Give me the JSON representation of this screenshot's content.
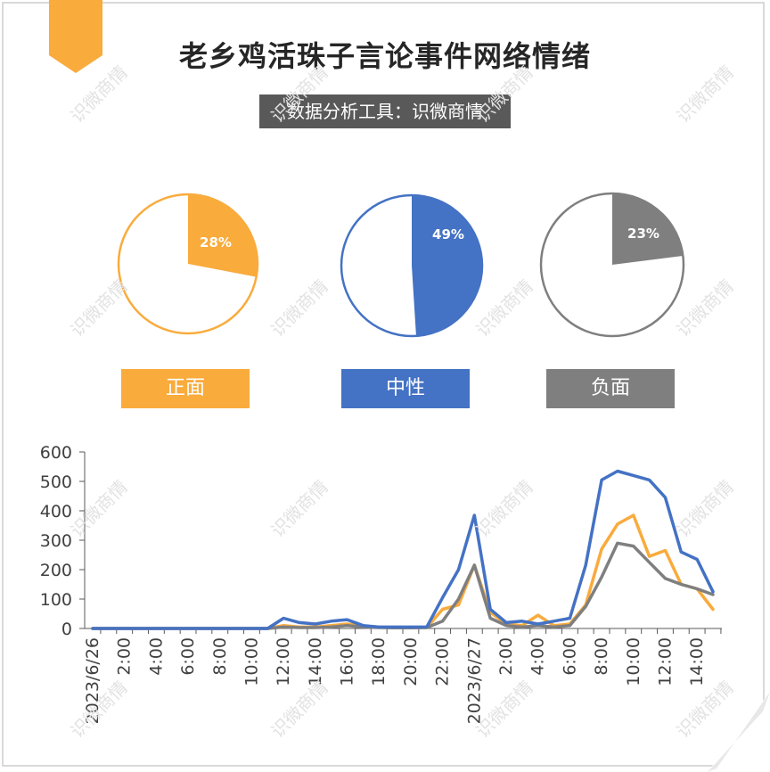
{
  "title": "老乡鸡活珠子言论事件网络情绪",
  "subtitle": "数据分析工具：识微商情",
  "watermark_text": "识微商情",
  "colors": {
    "positive": "#F9AB3C",
    "neutral": "#4472C4",
    "negative": "#7F7F7F",
    "subtitle_bg": "#595959"
  },
  "sentiment": [
    {
      "key": "positive",
      "label": "正面",
      "percent_label": "28%",
      "fraction": 0.28
    },
    {
      "key": "neutral",
      "label": "中性",
      "percent_label": "49%",
      "fraction": 0.49
    },
    {
      "key": "negative",
      "label": "负面",
      "percent_label": "23%",
      "fraction": 0.23
    }
  ],
  "chart_data": {
    "type": "line",
    "ylim": [
      0,
      600
    ],
    "yticks": [
      0,
      100,
      200,
      300,
      400,
      500,
      600
    ],
    "x": [
      "2023/6/26 0:00",
      "1:00",
      "2:00",
      "3:00",
      "4:00",
      "5:00",
      "6:00",
      "7:00",
      "8:00",
      "9:00",
      "10:00",
      "11:00",
      "12:00",
      "13:00",
      "14:00",
      "15:00",
      "16:00",
      "17:00",
      "18:00",
      "19:00",
      "20:00",
      "21:00",
      "22:00",
      "23:00",
      "2023/6/27 0:00",
      "1:00",
      "2:00",
      "3:00",
      "4:00",
      "5:00",
      "6:00",
      "7:00",
      "8:00",
      "9:00",
      "10:00",
      "11:00",
      "12:00",
      "13:00",
      "14:00",
      "15:00"
    ],
    "tick_labels": [
      {
        "i": 0,
        "label": "2023/6/26"
      },
      {
        "i": 2,
        "label": "2:00"
      },
      {
        "i": 4,
        "label": "4:00"
      },
      {
        "i": 6,
        "label": "6:00"
      },
      {
        "i": 8,
        "label": "8:00"
      },
      {
        "i": 10,
        "label": "10:00"
      },
      {
        "i": 12,
        "label": "12:00"
      },
      {
        "i": 14,
        "label": "14:00"
      },
      {
        "i": 16,
        "label": "16:00"
      },
      {
        "i": 18,
        "label": "18:00"
      },
      {
        "i": 20,
        "label": "20:00"
      },
      {
        "i": 22,
        "label": "22:00"
      },
      {
        "i": 24,
        "label": "2023/6/27"
      },
      {
        "i": 26,
        "label": "2:00"
      },
      {
        "i": 28,
        "label": "4:00"
      },
      {
        "i": 30,
        "label": "6:00"
      },
      {
        "i": 32,
        "label": "8:00"
      },
      {
        "i": 34,
        "label": "10:00"
      },
      {
        "i": 36,
        "label": "12:00"
      },
      {
        "i": 38,
        "label": "14:00"
      }
    ],
    "series": [
      {
        "key": "positive",
        "values": [
          0,
          0,
          0,
          0,
          0,
          0,
          0,
          0,
          0,
          0,
          0,
          0,
          10,
          5,
          5,
          10,
          15,
          8,
          5,
          3,
          3,
          3,
          65,
          80,
          215,
          55,
          15,
          10,
          45,
          10,
          15,
          80,
          270,
          355,
          385,
          245,
          265,
          150,
          135,
          65
        ]
      },
      {
        "key": "negative",
        "values": [
          0,
          0,
          0,
          0,
          0,
          0,
          0,
          0,
          0,
          0,
          0,
          0,
          5,
          3,
          3,
          5,
          10,
          5,
          3,
          2,
          2,
          3,
          25,
          100,
          215,
          35,
          10,
          5,
          10,
          5,
          10,
          75,
          175,
          290,
          280,
          225,
          170,
          150,
          135,
          115
        ]
      },
      {
        "key": "neutral",
        "values": [
          0,
          0,
          0,
          0,
          0,
          0,
          0,
          0,
          0,
          0,
          0,
          0,
          35,
          20,
          15,
          25,
          30,
          10,
          5,
          5,
          5,
          5,
          105,
          200,
          385,
          65,
          20,
          25,
          15,
          25,
          35,
          215,
          505,
          535,
          520,
          505,
          445,
          260,
          235,
          125
        ]
      }
    ]
  }
}
